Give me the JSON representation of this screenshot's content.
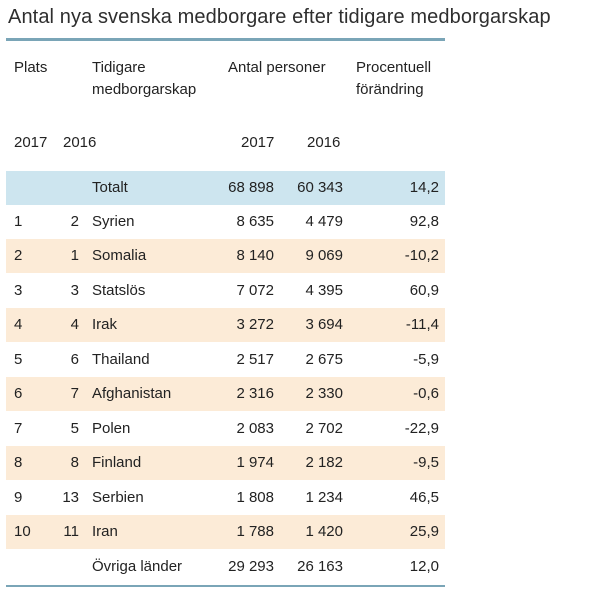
{
  "title": "Antal nya svenska medborgare efter tidigare medborgarskap",
  "headers": {
    "plats": "Plats",
    "tidigare_line1": "Tidigare",
    "tidigare_line2": "medborgarskap",
    "antal": "Antal personer",
    "procent_line1": "Procentuell",
    "procent_line2": "förändring",
    "year_2017_a": "2017",
    "year_2016_a": "2016",
    "year_2017_b": "2017",
    "year_2016_b": "2016"
  },
  "total": {
    "label": "Totalt",
    "v2017": "68 898",
    "v2016": "60 343",
    "change": "14,2"
  },
  "rows": [
    {
      "p2017": "1",
      "p2016": "2",
      "country": "Syrien",
      "v2017": "8 635",
      "v2016": "4 479",
      "change": "92,8"
    },
    {
      "p2017": "2",
      "p2016": "1",
      "country": "Somalia",
      "v2017": "8 140",
      "v2016": "9 069",
      "change": "-10,2"
    },
    {
      "p2017": "3",
      "p2016": "3",
      "country": "Statslös",
      "v2017": "7 072",
      "v2016": "4 395",
      "change": "60,9"
    },
    {
      "p2017": "4",
      "p2016": "4",
      "country": "Irak",
      "v2017": "3 272",
      "v2016": "3 694",
      "change": "-11,4"
    },
    {
      "p2017": "5",
      "p2016": "6",
      "country": "Thailand",
      "v2017": "2 517",
      "v2016": "2 675",
      "change": "-5,9"
    },
    {
      "p2017": "6",
      "p2016": "7",
      "country": "Afghanistan",
      "v2017": "2 316",
      "v2016": "2 330",
      "change": "-0,6"
    },
    {
      "p2017": "7",
      "p2016": "5",
      "country": "Polen",
      "v2017": "2 083",
      "v2016": "2 702",
      "change": "-22,9"
    },
    {
      "p2017": "8",
      "p2016": "8",
      "country": "Finland",
      "v2017": "1 974",
      "v2016": "2 182",
      "change": "-9,5"
    },
    {
      "p2017": "9",
      "p2016": "13",
      "country": "Serbien",
      "v2017": "1 808",
      "v2016": "1 234",
      "change": "46,5"
    },
    {
      "p2017": "10",
      "p2016": "11",
      "country": "Iran",
      "v2017": "1 788",
      "v2016": "1 420",
      "change": "25,9"
    }
  ],
  "ovriga": {
    "label": "Övriga länder",
    "v2017": "29 293",
    "v2016": "26 163",
    "change": "12,0"
  },
  "colors": {
    "rule": "#7aa5b7",
    "total_bg": "#cde5ef",
    "alt_bg": "#fcebd7"
  }
}
